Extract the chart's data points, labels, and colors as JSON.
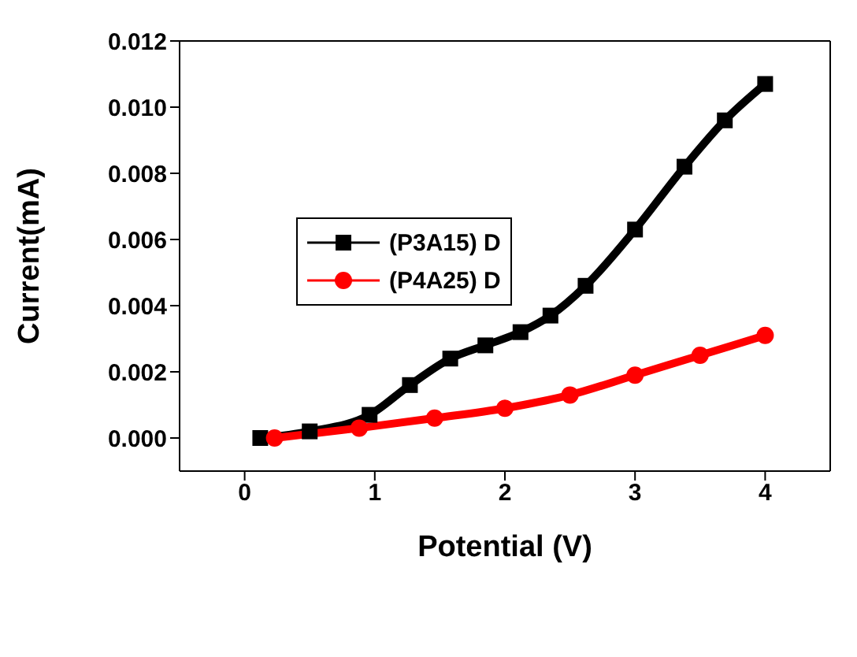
{
  "chart_data": {
    "type": "line",
    "xlabel": "Potential (V)",
    "ylabel": "Current(mA)",
    "xlim": [
      -0.5,
      4.5
    ],
    "xticks": [
      0,
      1,
      2,
      3,
      4
    ],
    "ylim": [
      -0.001,
      0.012
    ],
    "yticks": [
      {
        "value": 0,
        "label": "0.000"
      },
      {
        "value": 0.002,
        "label": "0.002"
      },
      {
        "value": 0.004,
        "label": "0.004"
      },
      {
        "value": 0.006,
        "label": "0.006"
      },
      {
        "value": 0.008,
        "label": "0.008"
      },
      {
        "value": 0.01,
        "label": "0.010"
      },
      {
        "value": 0.012,
        "label": "0.012"
      }
    ],
    "legend": "center left",
    "line_style": "solid",
    "series": [
      {
        "name": "(P3A15) D",
        "color": "#000000",
        "marker": "square",
        "x": [
          0.12,
          0.5,
          0.96,
          1.27,
          1.58,
          1.85,
          2.12,
          2.35,
          2.62,
          3.0,
          3.38,
          3.69,
          4.0
        ],
        "values": [
          0.0,
          0.0002,
          0.0007,
          0.0016,
          0.0024,
          0.0028,
          0.0032,
          0.0037,
          0.0046,
          0.0063,
          0.0082,
          0.0096,
          0.0107
        ]
      },
      {
        "name": "(P4A25) D",
        "color": "#ff0000",
        "marker": "circle",
        "x": [
          0.23,
          0.88,
          1.46,
          2.0,
          2.5,
          3.0,
          3.5,
          4.0
        ],
        "values": [
          0.0,
          0.0003,
          0.0006,
          0.0009,
          0.0013,
          0.0019,
          0.0025,
          0.0031
        ]
      }
    ]
  }
}
